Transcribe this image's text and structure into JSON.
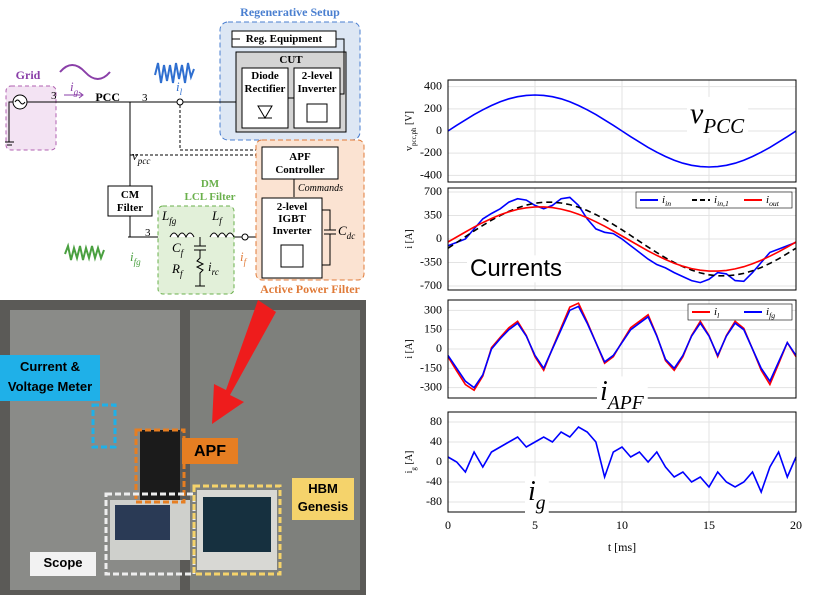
{
  "diagram": {
    "regen_title": "Regenerative Setup",
    "reg_equipment": "Reg. Equipment",
    "cut": "CUT",
    "diode_rectifier": [
      "Diode",
      "Rectifier"
    ],
    "inverter": [
      "2-level",
      "Inverter"
    ],
    "grid": "Grid",
    "pcc": "PCC",
    "phases": "3",
    "i_g": "i_g",
    "i_l": "i_l",
    "v_pcc": "v_pcc",
    "apf_controller": [
      "APF",
      "Controller"
    ],
    "commands": "Commands",
    "cm_filter": [
      "CM",
      "Filter"
    ],
    "dm_lcl": [
      "DM",
      "LCL Filter"
    ],
    "igbt_inverter": [
      "2-level",
      "IGBT",
      "Inverter"
    ],
    "c_dc": "C_dc",
    "l_fg": "L_fg",
    "l_f": "L_f",
    "c_f": "C_f",
    "r_f": "R_f",
    "i_rc": "i_rc",
    "i_fg": "i_fg",
    "i_f": "i_f",
    "apf_label": "Active Power Filter"
  },
  "photo": {
    "meter": [
      "Current &",
      "Voltage Meter"
    ],
    "apf": "APF",
    "hbm": [
      "HBM",
      "Genesis"
    ],
    "scope": "Scope"
  },
  "chart_data": [
    {
      "type": "line",
      "ylabel": "v_pcc,ph [V]",
      "annotation": "v_PCC",
      "grid": true,
      "x": [
        0,
        0.5,
        1,
        1.5,
        2,
        2.5,
        3,
        3.5,
        4,
        4.5,
        5,
        5.5,
        6,
        6.5,
        7,
        7.5,
        8,
        8.5,
        9,
        9.5,
        10,
        10.5,
        11,
        11.5,
        12,
        12.5,
        13,
        13.5,
        14,
        14.5,
        15,
        15.5,
        16,
        16.5,
        17,
        17.5,
        18,
        18.5,
        19,
        19.5,
        20
      ],
      "values": [
        0,
        51,
        100,
        148,
        191,
        230,
        263,
        290,
        309,
        321,
        325,
        321,
        309,
        290,
        263,
        230,
        191,
        148,
        100,
        51,
        0,
        -51,
        -100,
        -148,
        -191,
        -230,
        -263,
        -290,
        -309,
        -321,
        -325,
        -321,
        -309,
        -290,
        -263,
        -230,
        -191,
        -148,
        -100,
        -51,
        0
      ],
      "color": "#0000ff",
      "xlim": [
        0,
        20
      ],
      "xticks": [
        0,
        5,
        10,
        15,
        20
      ],
      "ylim": [
        -460,
        460
      ],
      "yticks": [
        -400,
        -200,
        0,
        200,
        400
      ]
    },
    {
      "type": "line",
      "ylabel": "i [A]",
      "annotation": "Currents",
      "grid": true,
      "legend": "upper right",
      "x": [
        0,
        0.5,
        1,
        1.5,
        2,
        2.5,
        3,
        3.5,
        4,
        4.5,
        5,
        5.5,
        6,
        6.5,
        7,
        7.5,
        8,
        8.5,
        9,
        9.5,
        10,
        10.5,
        11,
        11.5,
        12,
        12.5,
        13,
        13.5,
        14,
        14.5,
        15,
        15.5,
        16,
        16.5,
        17,
        17.5,
        18,
        18.5,
        19,
        19.5,
        20
      ],
      "series": [
        {
          "name": "i_in",
          "color": "#0000ff",
          "style": "solid",
          "values": [
            -100,
            -50,
            0,
            150,
            300,
            380,
            450,
            550,
            600,
            580,
            500,
            450,
            500,
            600,
            620,
            500,
            300,
            150,
            100,
            80,
            0,
            -100,
            -200,
            -300,
            -380,
            -430,
            -500,
            -560,
            -620,
            -650,
            -600,
            -500,
            -520,
            -620,
            -630,
            -500,
            -350,
            -200,
            -150,
            -100,
            -50
          ]
        },
        {
          "name": "i_in,1",
          "color": "#000000",
          "style": "dashed",
          "values": [
            -137,
            -52,
            35,
            120,
            202,
            280,
            350,
            413,
            464,
            505,
            533,
            548,
            549,
            537,
            512,
            474,
            424,
            364,
            295,
            218,
            137,
            52,
            -35,
            -120,
            -202,
            -280,
            -350,
            -413,
            -464,
            -505,
            -533,
            -548,
            -549,
            -537,
            -512,
            -474,
            -424,
            -364,
            -295,
            -218,
            -137
          ]
        },
        {
          "name": "i_out",
          "color": "#ff0000",
          "style": "solid",
          "values": [
            -45,
            30,
            105,
            177,
            244,
            306,
            360,
            405,
            441,
            465,
            478,
            479,
            468,
            446,
            413,
            370,
            317,
            257,
            191,
            119,
            45,
            -30,
            -105,
            -177,
            -244,
            -306,
            -360,
            -405,
            -441,
            -465,
            -478,
            -479,
            -468,
            -446,
            -413,
            -370,
            -317,
            -257,
            -191,
            -119,
            -45
          ]
        }
      ],
      "xlim": [
        0,
        20
      ],
      "xticks": [
        0,
        5,
        10,
        15,
        20
      ],
      "ylim": [
        -760,
        760
      ],
      "yticks": [
        -700,
        -350,
        0,
        350,
        700
      ]
    },
    {
      "type": "line",
      "ylabel": "i [A]",
      "annotation": "i_APF",
      "grid": true,
      "legend": "upper right",
      "x": [
        0,
        0.5,
        1,
        1.5,
        2,
        2.5,
        3,
        3.5,
        4,
        4.5,
        5,
        5.5,
        6,
        6.5,
        7,
        7.5,
        8,
        8.5,
        9,
        9.5,
        10,
        10.5,
        11,
        11.5,
        12,
        12.5,
        13,
        13.5,
        14,
        14.5,
        15,
        15.5,
        16,
        16.5,
        17,
        17.5,
        18,
        18.5,
        19,
        19.5,
        20
      ],
      "series": [
        {
          "name": "i_l",
          "color": "#ff0000",
          "style": "solid",
          "values": [
            -60,
            -170,
            -275,
            -320,
            -210,
            10,
            90,
            165,
            215,
            105,
            -60,
            -165,
            5,
            165,
            325,
            355,
            210,
            50,
            -110,
            -60,
            55,
            165,
            215,
            265,
            105,
            -90,
            -165,
            -60,
            105,
            215,
            105,
            -60,
            105,
            215,
            160,
            0,
            -165,
            -275,
            -115,
            50,
            -60
          ]
        },
        {
          "name": "i_fg",
          "color": "#0000ff",
          "style": "solid",
          "values": [
            -50,
            -150,
            -250,
            -300,
            -200,
            0,
            80,
            150,
            200,
            100,
            -50,
            -150,
            0,
            150,
            300,
            330,
            200,
            50,
            -100,
            -50,
            50,
            150,
            200,
            250,
            100,
            -80,
            -150,
            -50,
            100,
            200,
            100,
            -50,
            100,
            200,
            150,
            0,
            -150,
            -250,
            -100,
            50,
            -50
          ]
        }
      ],
      "xlim": [
        0,
        20
      ],
      "xticks": [
        0,
        5,
        10,
        15,
        20
      ],
      "ylim": [
        -380,
        380
      ],
      "yticks": [
        -300,
        -150,
        0,
        150,
        300
      ]
    },
    {
      "type": "line",
      "ylabel": "i_g [A]",
      "annotation": "i_g",
      "xlabel": "t [ms]",
      "grid": true,
      "x": [
        0,
        0.5,
        1,
        1.5,
        2,
        2.5,
        3,
        3.5,
        4,
        4.5,
        5,
        5.5,
        6,
        6.5,
        7,
        7.5,
        8,
        8.5,
        9,
        9.5,
        10,
        10.5,
        11,
        11.5,
        12,
        12.5,
        13,
        13.5,
        14,
        14.5,
        15,
        15.5,
        16,
        16.5,
        17,
        17.5,
        18,
        18.5,
        19,
        19.5,
        20
      ],
      "values": [
        10,
        0,
        -20,
        20,
        -10,
        20,
        30,
        40,
        50,
        30,
        40,
        50,
        40,
        60,
        50,
        70,
        60,
        40,
        -30,
        20,
        30,
        10,
        20,
        0,
        20,
        -10,
        -30,
        -20,
        -40,
        -30,
        -50,
        -20,
        -40,
        -50,
        -40,
        -20,
        -60,
        -10,
        20,
        -30,
        10
      ],
      "color": "#0000ff",
      "xlim": [
        0,
        20
      ],
      "xticks": [
        0,
        5,
        10,
        15,
        20
      ],
      "ylim": [
        -100,
        100
      ],
      "yticks": [
        -80,
        -40,
        0,
        40,
        80
      ]
    }
  ]
}
